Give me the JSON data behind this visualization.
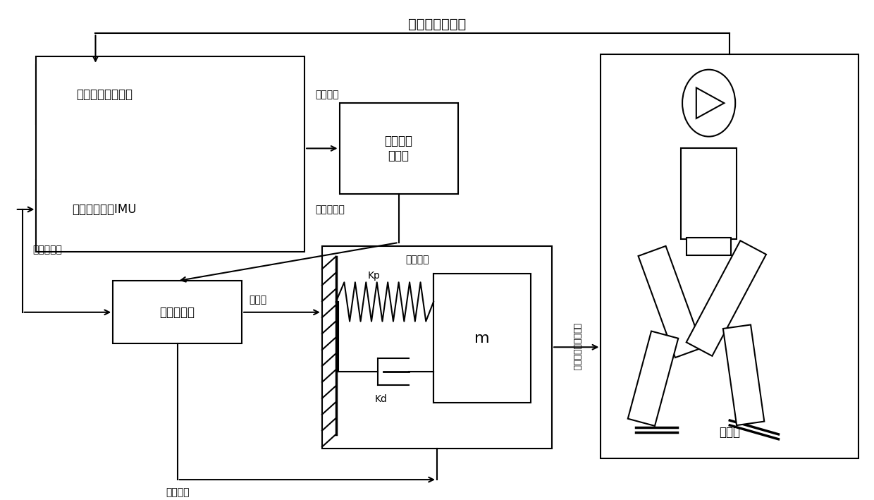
{
  "bg_color": "#ffffff",
  "line_color": "#000000",
  "lw": 1.5,
  "title": "机器人实际状态",
  "label_foot_force1": "足部受力",
  "label_robot_pose1": "机器人姿态",
  "label_control_law": "控制规律",
  "label_virtual_force": "虚拟力",
  "label_foot_force2": "足部受力",
  "label_robot_pose2": "机器人姿态",
  "label_sensor": "足部六维力传感器",
  "label_imu": "惯性测量单元IMU",
  "label_classifier": "控制规律\n分类器",
  "label_controller": "姿态控制器",
  "label_kp": "Kp",
  "label_kd": "Kd",
  "label_m": "m",
  "label_robot": "机器人",
  "label_vertical": "躯关节角度调节书里",
  "font_size": 12,
  "font_size_small": 10,
  "font_size_large": 14
}
